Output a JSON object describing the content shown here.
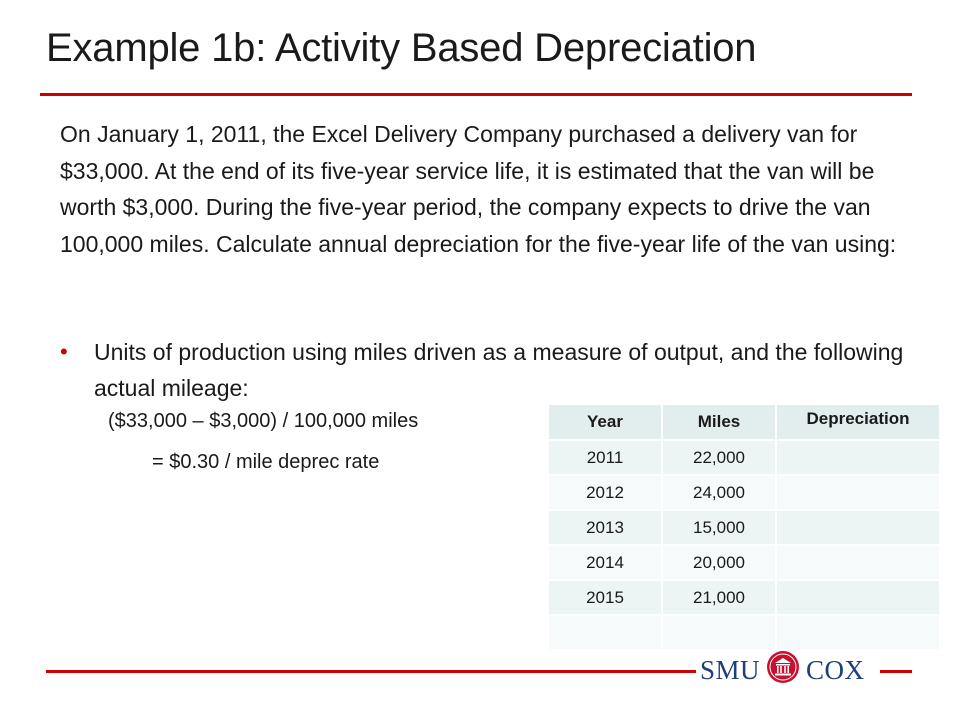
{
  "slide": {
    "title": "Example 1b: Activity Based Depreciation",
    "paragraph": "On January 1, 2011, the Excel Delivery Company purchased a delivery van for $33,000.  At the end of its five-year service life, it is estimated that the van will be worth $3,000.  During the five-year period, the company expects to drive the van 100,000 miles.  Calculate annual depreciation for the five-year life of the van using:",
    "bullet": "Units of production using miles driven as a measure of output, and the following actual mileage:",
    "formula_line1": "($33,000 – $3,000) / 100,000 miles",
    "formula_line2": "= $0.30 / mile deprec rate"
  },
  "table": {
    "headers": [
      "Year",
      "Miles",
      "Depreciation"
    ],
    "rows": [
      [
        "2011",
        "22,000",
        ""
      ],
      [
        "2012",
        "24,000",
        ""
      ],
      [
        "2013",
        "15,000",
        ""
      ],
      [
        "2014",
        "20,000",
        ""
      ],
      [
        "2015",
        "21,000",
        ""
      ],
      [
        "",
        "",
        ""
      ]
    ]
  },
  "logo": {
    "left_text": "SMU",
    "right_text": "COX"
  },
  "colors": {
    "accent_red": "#cc0000",
    "table_header": "#e2eeee",
    "logo_blue": "#1f3e7a"
  }
}
